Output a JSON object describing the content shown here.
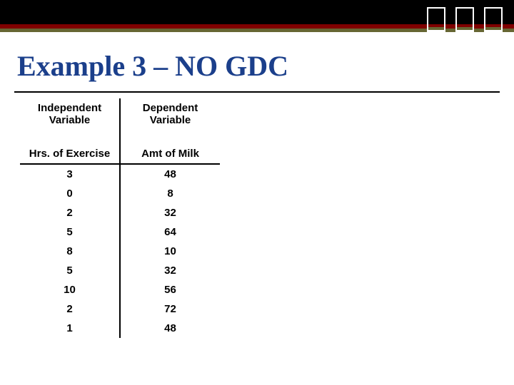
{
  "title": "Example 3 – NO GDC",
  "table": {
    "header1_left_line1": "Independent",
    "header1_left_line2": "Variable",
    "header1_right_line1": "Dependent",
    "header1_right_line2": "Variable",
    "header2_left": "Hrs. of Exercise",
    "header2_right": "Amt of Milk",
    "rows": [
      {
        "x": "3",
        "y": "48"
      },
      {
        "x": "0",
        "y": "8"
      },
      {
        "x": "2",
        "y": "32"
      },
      {
        "x": "5",
        "y": "64"
      },
      {
        "x": "8",
        "y": "10"
      },
      {
        "x": "5",
        "y": "32"
      },
      {
        "x": "10",
        "y": "56"
      },
      {
        "x": "2",
        "y": "72"
      },
      {
        "x": "1",
        "y": "48"
      }
    ]
  },
  "colors": {
    "title": "#1b3f8b",
    "band_dark": "#000000",
    "band_maroon": "#800000",
    "band_olive": "#666633",
    "background": "#ffffff"
  }
}
